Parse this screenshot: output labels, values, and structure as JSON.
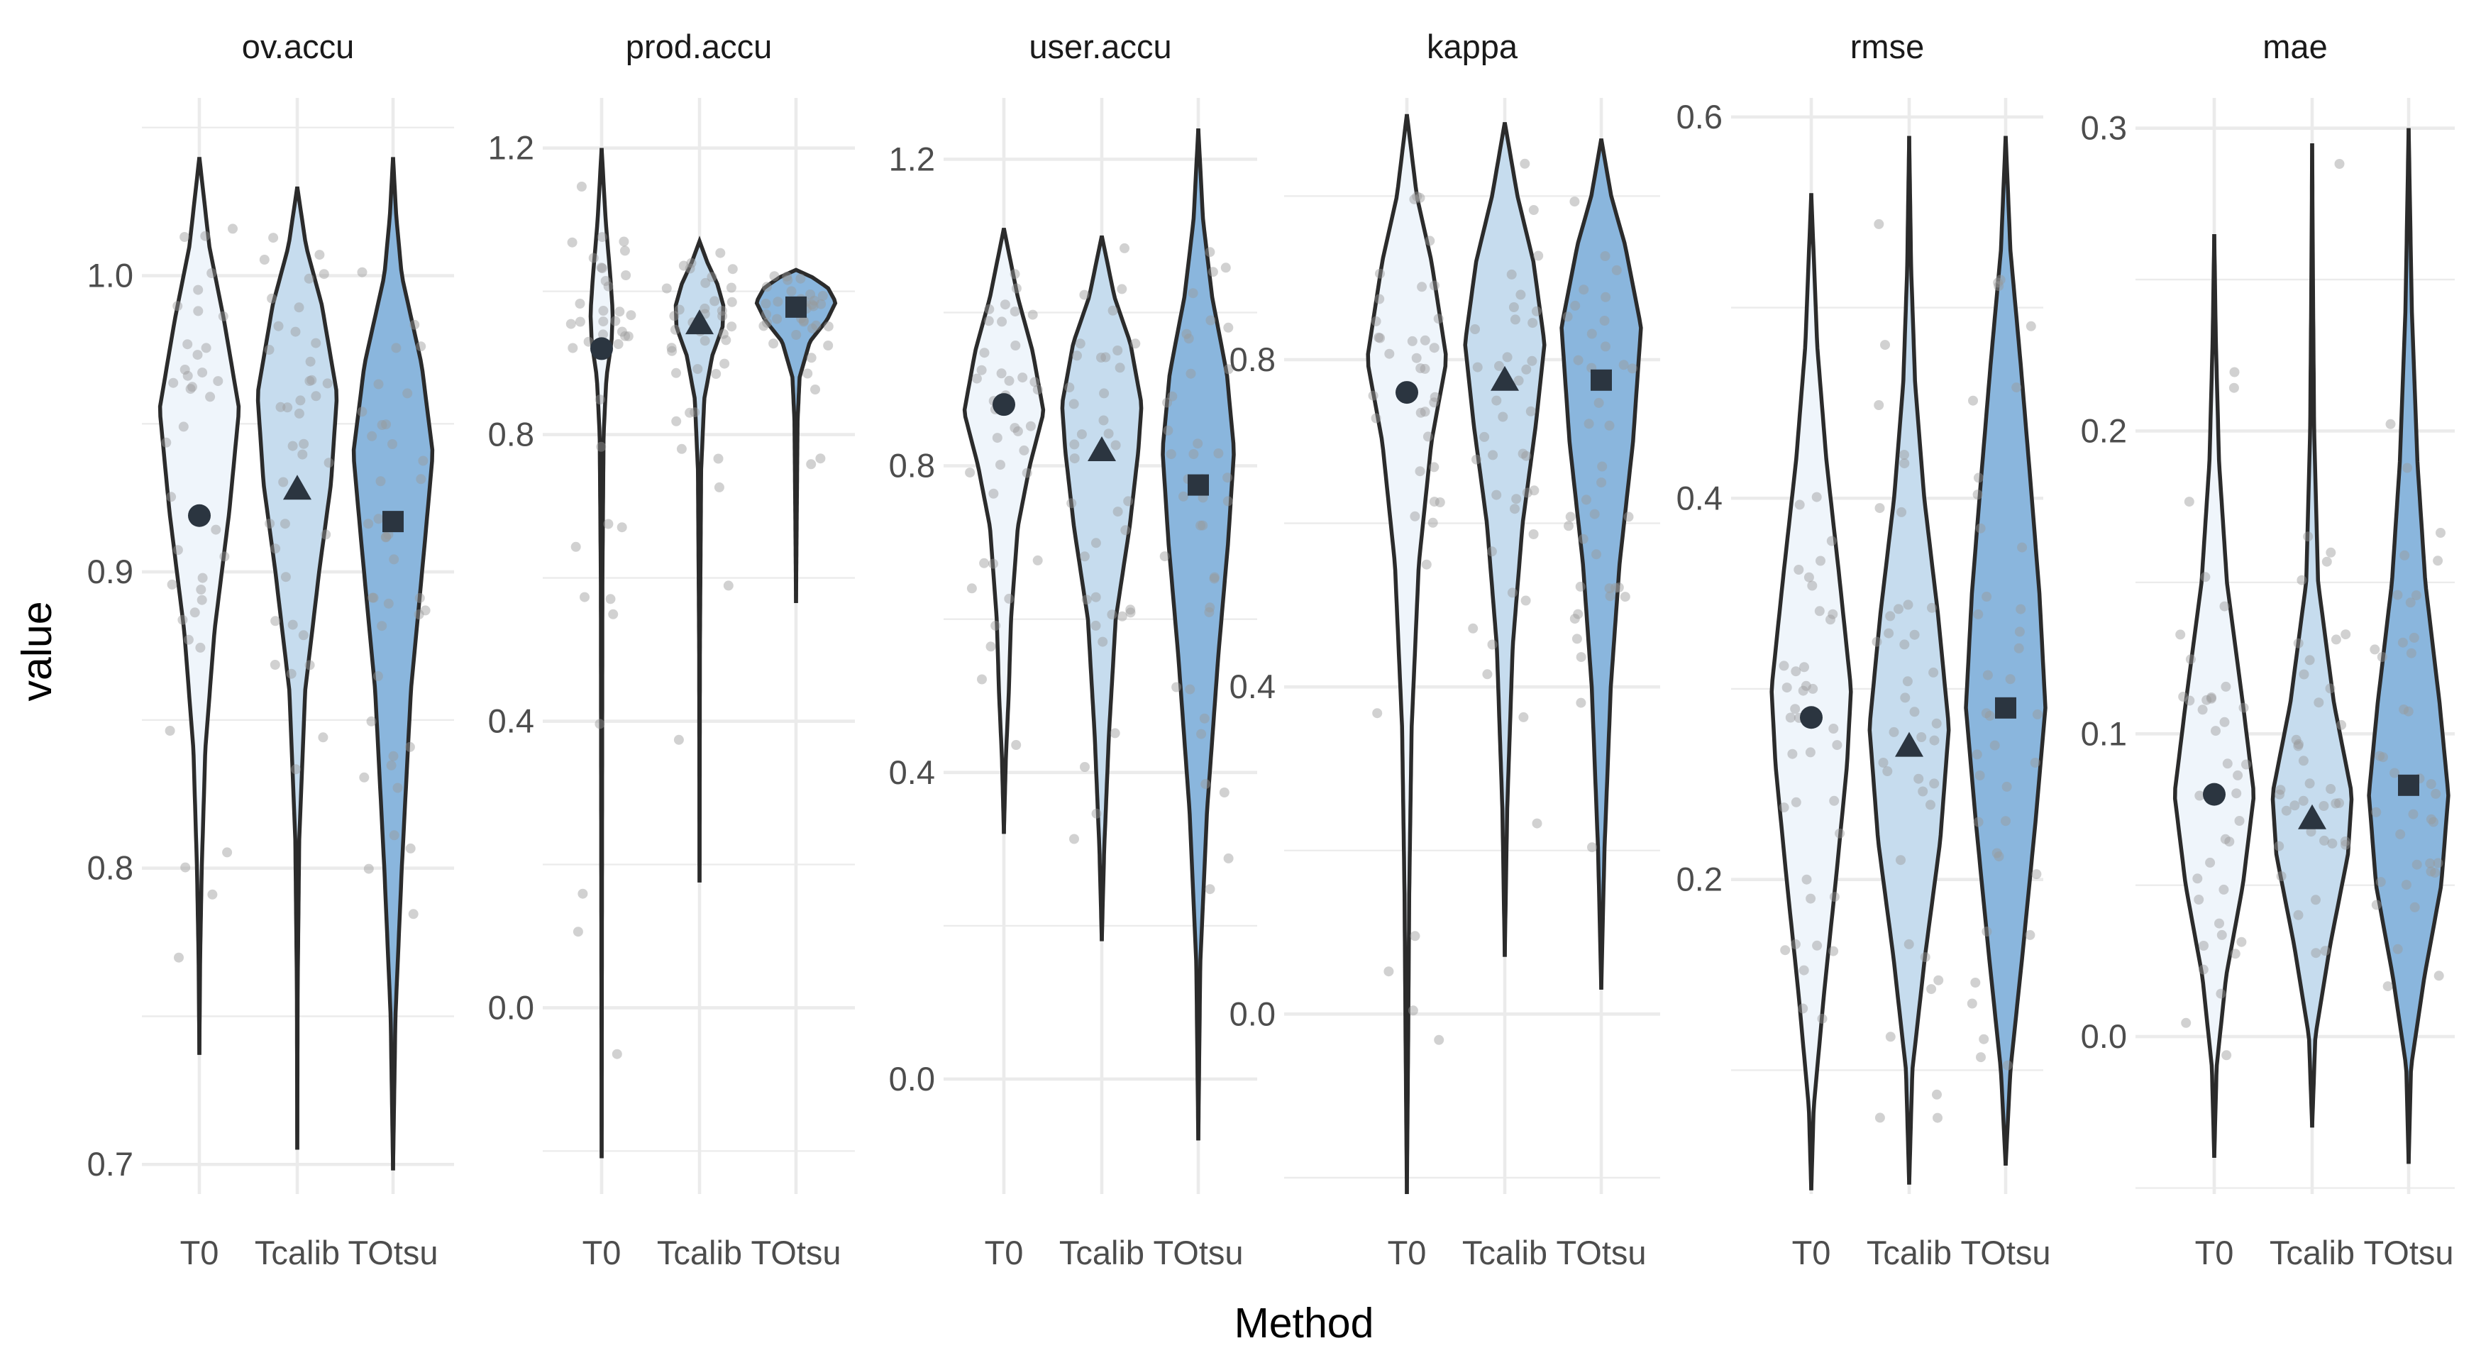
{
  "chart_data": {
    "type": "violin",
    "xlabel": "Method",
    "ylabel": "value",
    "categories": [
      "T0",
      "Tcalib",
      "TOtsu"
    ],
    "fill_colors": {
      "T0": "#eff5fb",
      "Tcalib": "#c6dcee",
      "TOtsu": "#8ab6dd"
    },
    "mean_markers": {
      "T0": "circle",
      "Tcalib": "triangle",
      "TOtsu": "square"
    },
    "panels": [
      {
        "title": "ov.accu",
        "ylim": [
          0.69,
          1.06
        ],
        "major_ticks": [
          0.7,
          0.8,
          0.9,
          1.0
        ],
        "tick_labels": [
          "0.7",
          "0.8",
          "0.9",
          "1.0"
        ],
        "minor_ticks": [
          0.75,
          0.85,
          0.95,
          1.05
        ],
        "series": [
          {
            "name": "T0",
            "mean": 0.919,
            "min": 0.737,
            "max": 1.04,
            "profile": [
              [
                0.737,
                0
              ],
              [
                0.77,
                0.02
              ],
              [
                0.8,
                0.06
              ],
              [
                0.84,
                0.15
              ],
              [
                0.88,
                0.38
              ],
              [
                0.92,
                0.75
              ],
              [
                0.955,
                1.0
              ],
              [
                0.985,
                0.62
              ],
              [
                1.01,
                0.25
              ],
              [
                1.04,
                0
              ]
            ]
          },
          {
            "name": "Tcalib",
            "mean": 0.928,
            "min": 0.705,
            "max": 1.03,
            "profile": [
              [
                0.705,
                0
              ],
              [
                0.76,
                0.01
              ],
              [
                0.81,
                0.05
              ],
              [
                0.86,
                0.2
              ],
              [
                0.9,
                0.55
              ],
              [
                0.93,
                0.85
              ],
              [
                0.96,
                1.0
              ],
              [
                0.99,
                0.62
              ],
              [
                1.01,
                0.22
              ],
              [
                1.03,
                0
              ]
            ]
          },
          {
            "name": "TOtsu",
            "mean": 0.917,
            "min": 0.698,
            "max": 1.04,
            "profile": [
              [
                0.698,
                0
              ],
              [
                0.75,
                0.06
              ],
              [
                0.8,
                0.22
              ],
              [
                0.86,
                0.45
              ],
              [
                0.91,
                0.8
              ],
              [
                0.94,
                1.0
              ],
              [
                0.97,
                0.72
              ],
              [
                1.0,
                0.22
              ],
              [
                1.02,
                0.08
              ],
              [
                1.04,
                0
              ]
            ]
          }
        ]
      },
      {
        "title": "prod.accu",
        "ylim": [
          -0.26,
          1.27
        ],
        "major_ticks": [
          0.0,
          0.4,
          0.8,
          1.2
        ],
        "tick_labels": [
          "0.0",
          "0.4",
          "0.8",
          "1.2"
        ],
        "minor_ticks": [
          -0.2,
          0.2,
          0.6,
          1.0
        ],
        "series": [
          {
            "name": "T0",
            "mean": 0.92,
            "min": -0.21,
            "max": 1.2,
            "profile": [
              [
                -0.21,
                0
              ],
              [
                0.2,
                0.01
              ],
              [
                0.6,
                0.02
              ],
              [
                0.8,
                0.05
              ],
              [
                0.88,
                0.12
              ],
              [
                0.93,
                0.25
              ],
              [
                0.97,
                0.28
              ],
              [
                1.02,
                0.22
              ],
              [
                1.1,
                0.1
              ],
              [
                1.2,
                0
              ]
            ]
          },
          {
            "name": "Tcalib",
            "mean": 0.955,
            "min": 0.175,
            "max": 1.07,
            "profile": [
              [
                0.175,
                0
              ],
              [
                0.5,
                0.01
              ],
              [
                0.75,
                0.04
              ],
              [
                0.85,
                0.12
              ],
              [
                0.91,
                0.32
              ],
              [
                0.95,
                0.58
              ],
              [
                0.98,
                0.6
              ],
              [
                1.01,
                0.45
              ],
              [
                1.04,
                0.2
              ],
              [
                1.07,
                0
              ]
            ]
          },
          {
            "name": "TOtsu",
            "mean": 0.978,
            "min": 0.565,
            "max": 1.03,
            "profile": [
              [
                0.565,
                0
              ],
              [
                0.7,
                0.02
              ],
              [
                0.82,
                0.04
              ],
              [
                0.88,
                0.09
              ],
              [
                0.93,
                0.35
              ],
              [
                0.96,
                0.78
              ],
              [
                0.985,
                1.0
              ],
              [
                1.005,
                0.8
              ],
              [
                1.02,
                0.4
              ],
              [
                1.03,
                0
              ]
            ]
          }
        ]
      },
      {
        "title": "user.accu",
        "ylim": [
          -0.15,
          1.28
        ],
        "major_ticks": [
          0.0,
          0.4,
          0.8,
          1.2
        ],
        "tick_labels": [
          "0.0",
          "0.4",
          "0.8",
          "1.2"
        ],
        "minor_ticks": [
          0.2,
          0.6,
          1.0
        ],
        "series": [
          {
            "name": "T0",
            "mean": 0.88,
            "min": 0.32,
            "max": 1.11,
            "profile": [
              [
                0.32,
                0
              ],
              [
                0.42,
                0.05
              ],
              [
                0.5,
                0.12
              ],
              [
                0.6,
                0.18
              ],
              [
                0.72,
                0.35
              ],
              [
                0.8,
                0.65
              ],
              [
                0.87,
                1.0
              ],
              [
                0.95,
                0.72
              ],
              [
                1.02,
                0.35
              ],
              [
                1.11,
                0
              ]
            ]
          },
          {
            "name": "Tcalib",
            "mean": 0.82,
            "min": 0.18,
            "max": 1.1,
            "profile": [
              [
                0.18,
                0
              ],
              [
                0.3,
                0.06
              ],
              [
                0.45,
                0.18
              ],
              [
                0.6,
                0.35
              ],
              [
                0.72,
                0.7
              ],
              [
                0.82,
                0.92
              ],
              [
                0.88,
                1.0
              ],
              [
                0.96,
                0.72
              ],
              [
                1.02,
                0.32
              ],
              [
                1.1,
                0
              ]
            ]
          },
          {
            "name": "TOtsu",
            "mean": 0.775,
            "min": -0.08,
            "max": 1.24,
            "profile": [
              [
                -0.08,
                0
              ],
              [
                0.15,
                0.05
              ],
              [
                0.35,
                0.22
              ],
              [
                0.55,
                0.5
              ],
              [
                0.7,
                0.75
              ],
              [
                0.82,
                0.9
              ],
              [
                0.92,
                0.72
              ],
              [
                1.02,
                0.35
              ],
              [
                1.12,
                0.12
              ],
              [
                1.24,
                0
              ]
            ]
          }
        ]
      },
      {
        "title": "kappa",
        "ylim": [
          -0.22,
          1.12
        ],
        "major_ticks": [
          0.0,
          0.4,
          0.8
        ],
        "tick_labels": [
          "0.0",
          "0.4",
          "0.8"
        ],
        "minor_ticks": [
          -0.2,
          0.2,
          0.6,
          1.0
        ],
        "series": [
          {
            "name": "T0",
            "mean": 0.76,
            "min": -0.22,
            "max": 1.1,
            "profile": [
              [
                -0.22,
                0
              ],
              [
                -0.05,
                0.03
              ],
              [
                0.15,
                0.06
              ],
              [
                0.35,
                0.12
              ],
              [
                0.55,
                0.3
              ],
              [
                0.7,
                0.62
              ],
              [
                0.8,
                1.0
              ],
              [
                0.92,
                0.62
              ],
              [
                1.0,
                0.25
              ],
              [
                1.1,
                0
              ]
            ]
          },
          {
            "name": "Tcalib",
            "mean": 0.775,
            "min": 0.07,
            "max": 1.09,
            "profile": [
              [
                0.07,
                0
              ],
              [
                0.25,
                0.06
              ],
              [
                0.45,
                0.2
              ],
              [
                0.6,
                0.45
              ],
              [
                0.72,
                0.78
              ],
              [
                0.82,
                1.0
              ],
              [
                0.92,
                0.72
              ],
              [
                1.0,
                0.32
              ],
              [
                1.09,
                0
              ]
            ]
          },
          {
            "name": "TOtsu",
            "mean": 0.775,
            "min": 0.03,
            "max": 1.07,
            "profile": [
              [
                0.03,
                0
              ],
              [
                0.2,
                0.08
              ],
              [
                0.4,
                0.24
              ],
              [
                0.55,
                0.46
              ],
              [
                0.7,
                0.8
              ],
              [
                0.84,
                1.0
              ],
              [
                0.94,
                0.6
              ],
              [
                1.0,
                0.25
              ],
              [
                1.07,
                0
              ]
            ]
          }
        ]
      },
      {
        "title": "rmse",
        "ylim": [
          0.035,
          0.61
        ],
        "major_ticks": [
          0.2,
          0.4,
          0.6
        ],
        "tick_labels": [
          "0.2",
          "0.4",
          "0.6"
        ],
        "minor_ticks": [
          0.1,
          0.3,
          0.5
        ],
        "series": [
          {
            "name": "T0",
            "mean": 0.285,
            "min": 0.037,
            "max": 0.56,
            "profile": [
              [
                0.037,
                0
              ],
              [
                0.08,
                0.06
              ],
              [
                0.14,
                0.32
              ],
              [
                0.2,
                0.62
              ],
              [
                0.26,
                0.9
              ],
              [
                0.3,
                1.0
              ],
              [
                0.36,
                0.7
              ],
              [
                0.42,
                0.38
              ],
              [
                0.48,
                0.15
              ],
              [
                0.56,
                0
              ]
            ]
          },
          {
            "name": "Tcalib",
            "mean": 0.27,
            "min": 0.04,
            "max": 0.59,
            "profile": [
              [
                0.04,
                0
              ],
              [
                0.1,
                0.08
              ],
              [
                0.16,
                0.4
              ],
              [
                0.22,
                0.78
              ],
              [
                0.28,
                1.0
              ],
              [
                0.34,
                0.72
              ],
              [
                0.4,
                0.38
              ],
              [
                0.46,
                0.15
              ],
              [
                0.52,
                0.05
              ],
              [
                0.59,
                0
              ]
            ]
          },
          {
            "name": "TOtsu",
            "mean": 0.29,
            "min": 0.05,
            "max": 0.59,
            "profile": [
              [
                0.05,
                0
              ],
              [
                0.1,
                0.12
              ],
              [
                0.16,
                0.42
              ],
              [
                0.23,
                0.75
              ],
              [
                0.29,
                1.0
              ],
              [
                0.35,
                0.85
              ],
              [
                0.41,
                0.62
              ],
              [
                0.47,
                0.38
              ],
              [
                0.53,
                0.12
              ],
              [
                0.59,
                0
              ]
            ]
          }
        ]
      },
      {
        "title": "mae",
        "ylim": [
          -0.052,
          0.31
        ],
        "major_ticks": [
          0.0,
          0.1,
          0.2,
          0.3
        ],
        "tick_labels": [
          "0.0",
          "0.1",
          "0.2",
          "0.3"
        ],
        "minor_ticks": [
          -0.05,
          0.05,
          0.15,
          0.25
        ],
        "series": [
          {
            "name": "T0",
            "mean": 0.08,
            "min": -0.04,
            "max": 0.265,
            "profile": [
              [
                -0.04,
                0
              ],
              [
                -0.01,
                0.06
              ],
              [
                0.02,
                0.3
              ],
              [
                0.05,
                0.72
              ],
              [
                0.08,
                1.0
              ],
              [
                0.11,
                0.72
              ],
              [
                0.15,
                0.32
              ],
              [
                0.19,
                0.12
              ],
              [
                0.23,
                0.04
              ],
              [
                0.265,
                0
              ]
            ]
          },
          {
            "name": "Tcalib",
            "mean": 0.072,
            "min": -0.03,
            "max": 0.295,
            "profile": [
              [
                -0.03,
                0
              ],
              [
                0.0,
                0.08
              ],
              [
                0.03,
                0.45
              ],
              [
                0.06,
                0.9
              ],
              [
                0.08,
                1.0
              ],
              [
                0.11,
                0.55
              ],
              [
                0.15,
                0.15
              ],
              [
                0.2,
                0.05
              ],
              [
                0.25,
                0.02
              ],
              [
                0.295,
                0
              ]
            ]
          },
          {
            "name": "TOtsu",
            "mean": 0.083,
            "min": -0.042,
            "max": 0.3,
            "profile": [
              [
                -0.042,
                0
              ],
              [
                -0.01,
                0.06
              ],
              [
                0.02,
                0.4
              ],
              [
                0.05,
                0.82
              ],
              [
                0.08,
                1.0
              ],
              [
                0.11,
                0.78
              ],
              [
                0.15,
                0.42
              ],
              [
                0.19,
                0.22
              ],
              [
                0.24,
                0.08
              ],
              [
                0.3,
                0
              ]
            ]
          }
        ]
      }
    ]
  }
}
